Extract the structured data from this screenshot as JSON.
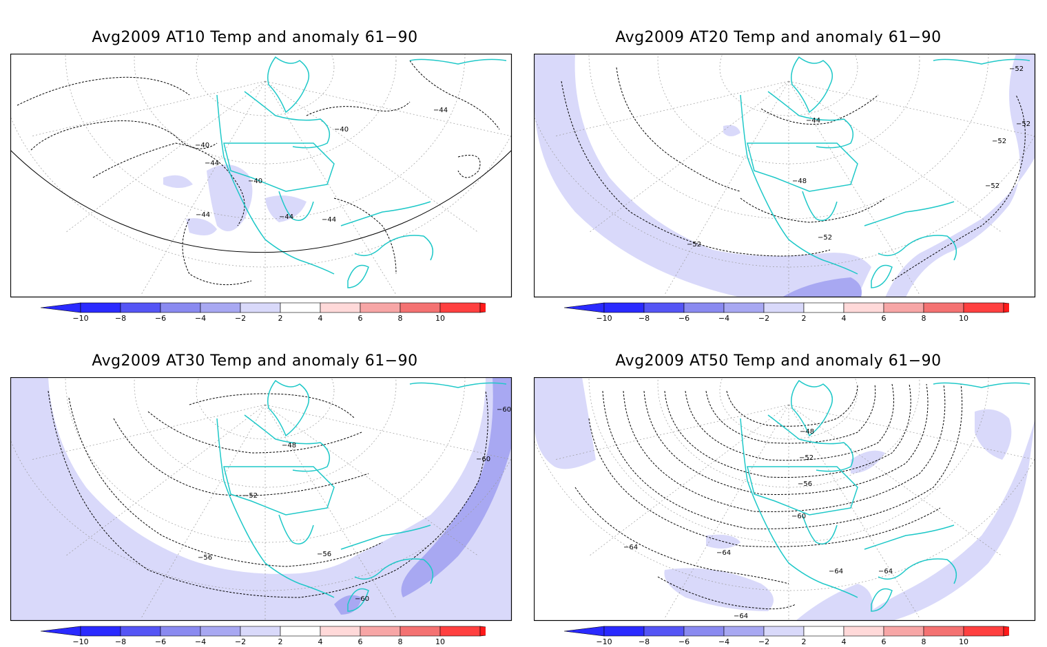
{
  "palette": {
    "neg10": "#2a2aff",
    "neg8": "#5555f5",
    "neg6": "#8a8af0",
    "neg4": "#a8a8f2",
    "neg2": "#d9d9fa",
    "white": "#ffffff",
    "pos2": "#ffd9d9",
    "pos4": "#f7a6a6",
    "pos6": "#f47272",
    "pos8": "#ff4040",
    "pos10": "#ff1a1a",
    "coast": "#1ec8c8"
  },
  "colorbar": {
    "ticks": [
      "−10",
      "−8",
      "−6",
      "−4",
      "−2",
      "2",
      "4",
      "6",
      "8",
      "10"
    ]
  },
  "panels": [
    {
      "title": "Avg2009 AT10 Temp and anomaly 61−90",
      "contour_labels": [
        "−44",
        "−40",
        "−40",
        "−44",
        "−40",
        "−44",
        "−44",
        "−44"
      ]
    },
    {
      "title": "Avg2009 AT20 Temp and anomaly 61−90",
      "contour_labels": [
        "−52",
        "−44",
        "−52",
        "−52",
        "−48",
        "−52",
        "−52",
        "−52"
      ]
    },
    {
      "title": "Avg2009 AT30 Temp and anomaly 61−90",
      "contour_labels": [
        "−60",
        "−48",
        "−60",
        "−52",
        "−56",
        "−56",
        "−60"
      ]
    },
    {
      "title": "Avg2009 AT50 Temp and anomaly 61−90",
      "contour_labels": [
        "−48",
        "−52",
        "−56",
        "−60",
        "−64",
        "−64",
        "−64",
        "−64",
        "−64"
      ]
    }
  ]
}
